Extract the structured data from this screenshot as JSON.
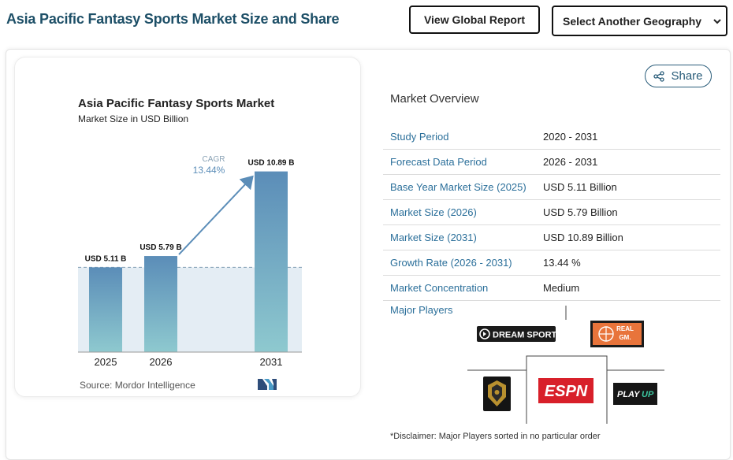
{
  "header": {
    "title": "Asia Pacific Fantasy Sports Market Size and Share",
    "view_global_label": "View Global Report",
    "geography_select_label": "Select Another Geography"
  },
  "chart_panel": {
    "source": "Source: Mordor Intelligence",
    "cagr_label": "CAGR",
    "cagr_value": "13.44%"
  },
  "chart_data": {
    "type": "bar",
    "title": "Asia Pacific Fantasy Sports Market",
    "subtitle": "Market Size in USD Billion",
    "categories": [
      "2025",
      "2026",
      "2031"
    ],
    "values": [
      5.11,
      5.79,
      10.89
    ],
    "data_labels": [
      "USD 5.11 B",
      "USD 5.79 B",
      "USD 10.89 B"
    ],
    "ylim": [
      0,
      11.3
    ],
    "xlabel": "",
    "ylabel": "",
    "grid": false,
    "colors": {
      "bar_top": "#5b8db8",
      "bar_bottom": "#8ec9cf",
      "baseline_band": "#d9e6ef",
      "arrow": "#5b8db8"
    }
  },
  "share": {
    "label": "Share"
  },
  "overview": {
    "title": "Market Overview",
    "rows": [
      {
        "label": "Study Period",
        "value": "2020 - 2031"
      },
      {
        "label": "Forecast Data Period",
        "value": "2026 - 2031"
      },
      {
        "label": "Base Year Market Size (2025)",
        "value": "USD 5.11 Billion"
      },
      {
        "label": "Market Size (2026)",
        "value": "USD 5.79 Billion"
      },
      {
        "label": "Market Size (2031)",
        "value": "USD 10.89 Billion"
      },
      {
        "label": "Growth Rate (2026 - 2031)",
        "value": "13.44 %"
      },
      {
        "label": "Market Concentration",
        "value": "Medium"
      }
    ]
  },
  "players": {
    "title": "Major Players",
    "logos": [
      "DREAM SPORTS",
      "REAL GM.",
      "ESPN",
      "PLAYUP"
    ],
    "disclaimer": "*Disclaimer: Major Players sorted in no particular order"
  },
  "colors": {
    "title": "#1d4f67",
    "link": "#2b6f9a",
    "accent": "#5b8db8"
  }
}
